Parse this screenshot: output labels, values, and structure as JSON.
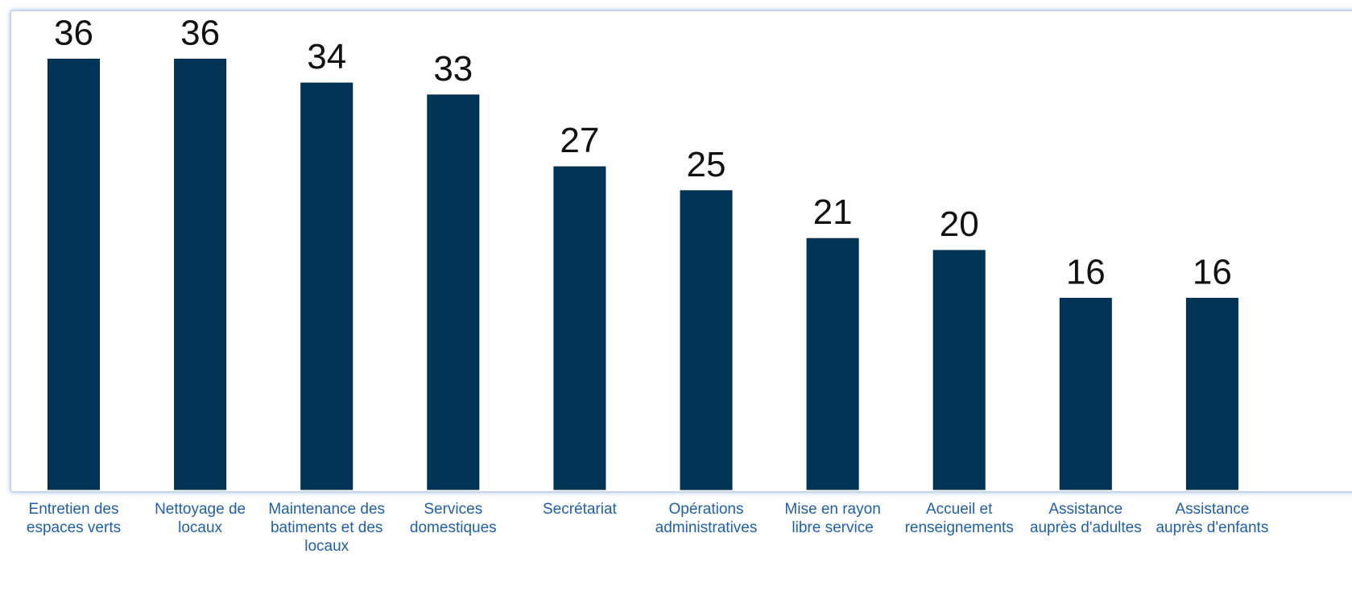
{
  "chart_data": {
    "type": "bar",
    "categories": [
      [
        "Entretien des",
        "espaces verts"
      ],
      [
        "Nettoyage de",
        "locaux"
      ],
      [
        "Maintenance des",
        "batiments et des",
        "locaux"
      ],
      [
        "Services",
        "domestiques"
      ],
      [
        "Secrétariat"
      ],
      [
        "Opérations",
        "administratives"
      ],
      [
        "Mise en rayon",
        "libre service"
      ],
      [
        "Accueil et",
        "renseignements"
      ],
      [
        "Assistance",
        "auprès d'adultes"
      ],
      [
        "Assistance",
        "auprès d'enfants"
      ]
    ],
    "values": [
      36,
      36,
      34,
      33,
      27,
      25,
      21,
      20,
      16,
      16
    ],
    "ylim": [
      0,
      40
    ],
    "grid": false,
    "bar_color": "#003557",
    "label_color": "#1f5fa8",
    "value_label_color": "#111111"
  }
}
